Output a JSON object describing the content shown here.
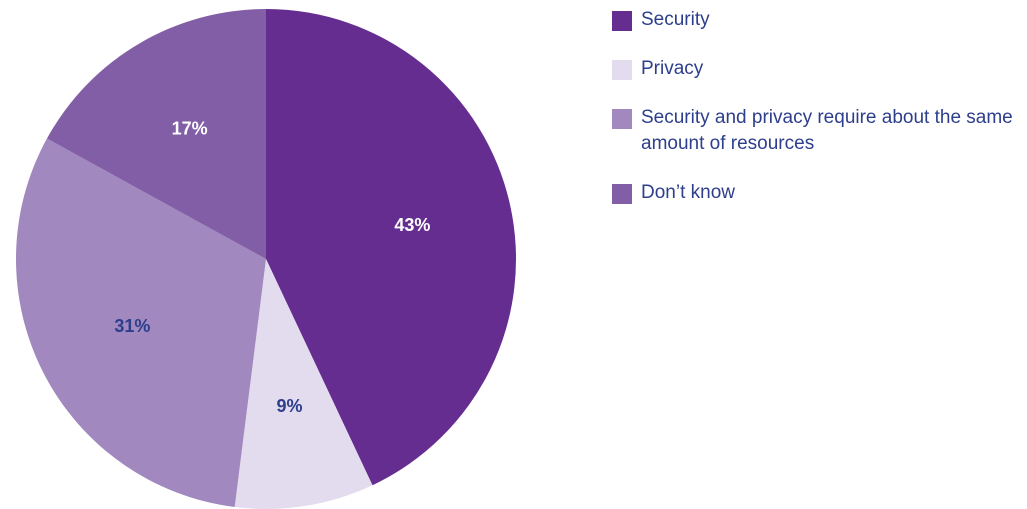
{
  "chart_data": {
    "type": "pie",
    "title": "",
    "legend_position": "right",
    "start_angle_deg": 0,
    "direction": "clockwise",
    "slices": [
      {
        "label": "Security",
        "value": 43,
        "display": "43%",
        "color": "#652d90",
        "label_color": "#ffffff"
      },
      {
        "label": "Privacy",
        "value": 9,
        "display": "9%",
        "color": "#e3dbee",
        "label_color": "#2d3e8c"
      },
      {
        "label": "Security and privacy require about the same amount of resources",
        "value": 31,
        "display": "31%",
        "color": "#a188be",
        "label_color": "#2d3e8c"
      },
      {
        "label": "Don’t know",
        "value": 17,
        "display": "17%",
        "color": "#825ea6",
        "label_color": "#ffffff"
      }
    ],
    "legend_text_color": "#2d3e8c"
  }
}
